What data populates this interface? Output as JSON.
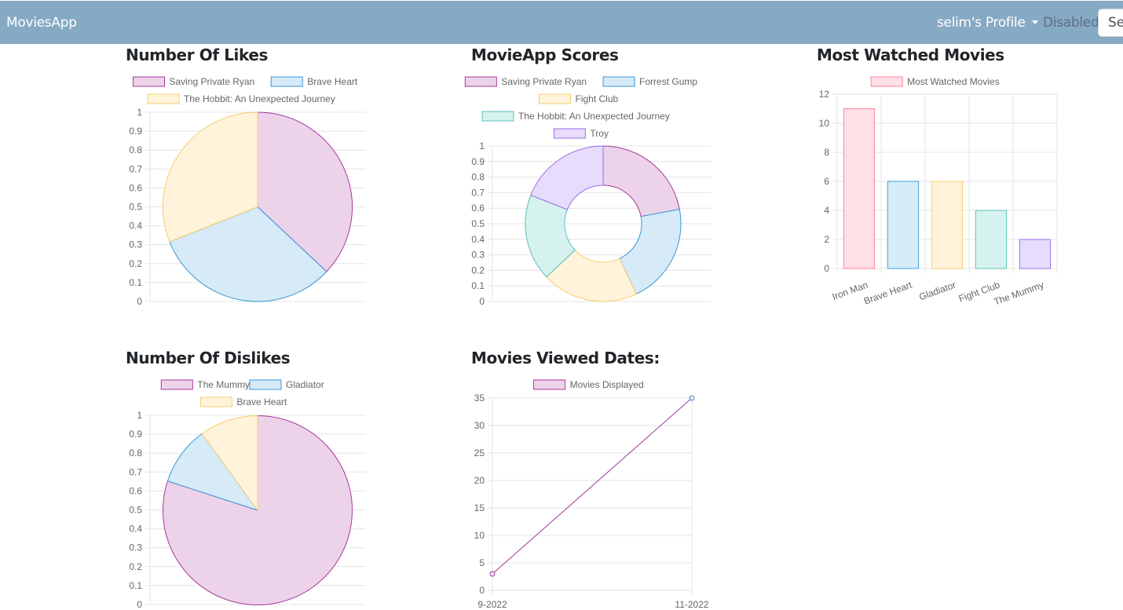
{
  "navbar": {
    "brand": "MoviesApp",
    "profile_label": "selim's Profile",
    "disabled_label": "Disabled",
    "search_placeholder": "Search"
  },
  "palette": {
    "pink": {
      "fill": "#ecd3e9",
      "stroke": "#a8399e"
    },
    "blue": {
      "fill": "#d6eaf8",
      "stroke": "#3b96d4"
    },
    "yellow": {
      "fill": "#fff3db",
      "stroke": "#f5cd6d"
    },
    "teal": {
      "fill": "#d6f2ef",
      "stroke": "#5bc0b8"
    },
    "purple": {
      "fill": "#e7dcfc",
      "stroke": "#9a6ce8"
    },
    "redpink": {
      "fill": "#ffe0e6",
      "stroke": "#ff7f99"
    },
    "cyan": {
      "fill": "#d6ecf8",
      "stroke": "#3c9ed8"
    },
    "line": "#a03a98",
    "grid": "#e4e4e4",
    "tick_text": "#666666"
  },
  "chart_data": [
    {
      "id": "likes",
      "type": "pie",
      "title": "Number Of Likes",
      "labels": [
        "Saving Private Ryan",
        "Brave Heart",
        "The Hobbit: An Unexpected Journey"
      ],
      "values": [
        37,
        32,
        31
      ],
      "colors": [
        "pink",
        "blue",
        "yellow"
      ],
      "legend_rows": [
        [
          0,
          1
        ],
        [
          2
        ]
      ],
      "yticks": [
        "0",
        "0.1",
        "0.2",
        "0.3",
        "0.4",
        "0.5",
        "0.6",
        "0.7",
        "0.8",
        "0.9",
        "1"
      ],
      "legend_position": "top"
    },
    {
      "id": "scores",
      "type": "doughnut",
      "title": "MovieApp Scores",
      "labels": [
        "Saving Private Ryan",
        "Forrest Gump",
        "Fight Club",
        "The Hobbit: An Unexpected Journey",
        "Troy"
      ],
      "values": [
        22,
        21,
        20,
        18,
        19
      ],
      "colors": [
        "pink",
        "blue",
        "yellow",
        "teal",
        "purple"
      ],
      "legend_rows": [
        [
          0,
          1
        ],
        [
          2
        ],
        [
          3
        ],
        [
          4
        ]
      ],
      "yticks": [
        "0",
        "0.1",
        "0.2",
        "0.3",
        "0.4",
        "0.5",
        "0.6",
        "0.7",
        "0.8",
        "0.9",
        "1"
      ],
      "legend_position": "top"
    },
    {
      "id": "watched",
      "type": "bar",
      "title": "Most Watched Movies",
      "series": [
        {
          "name": "Most Watched Movies",
          "values": [
            11,
            6,
            6,
            4,
            2
          ]
        }
      ],
      "categories": [
        "Iron Man",
        "Brave Heart",
        "Gladiator",
        "Fight Club",
        "The Mummy"
      ],
      "colors": [
        "redpink",
        "cyan",
        "yellow",
        "teal",
        "purple"
      ],
      "ylim": [
        0,
        12
      ],
      "yticks": [
        "0",
        "2",
        "4",
        "6",
        "8",
        "10",
        "12"
      ],
      "legend_position": "top"
    },
    {
      "id": "dislikes",
      "type": "pie",
      "title": "Number Of Dislikes",
      "labels": [
        "The Mummy",
        "Gladiator",
        "Brave Heart"
      ],
      "values": [
        80,
        10,
        10
      ],
      "colors": [
        "pink",
        "blue",
        "yellow"
      ],
      "legend_rows": [
        [
          0,
          1
        ],
        [
          2
        ]
      ],
      "yticks": [
        "0",
        "0.1",
        "0.2",
        "0.3",
        "0.4",
        "0.5",
        "0.6",
        "0.7",
        "0.8",
        "0.9",
        "1"
      ],
      "legend_position": "top"
    },
    {
      "id": "viewed",
      "type": "line",
      "title": "Movies Viewed Dates:",
      "x": [
        "9-2022",
        "11-2022"
      ],
      "series": [
        {
          "name": "Movies Displayed",
          "values": [
            3,
            35
          ]
        }
      ],
      "ylim": [
        0,
        35
      ],
      "yticks": [
        "0",
        "5",
        "10",
        "15",
        "20",
        "25",
        "30",
        "35"
      ],
      "legend_position": "top"
    }
  ]
}
